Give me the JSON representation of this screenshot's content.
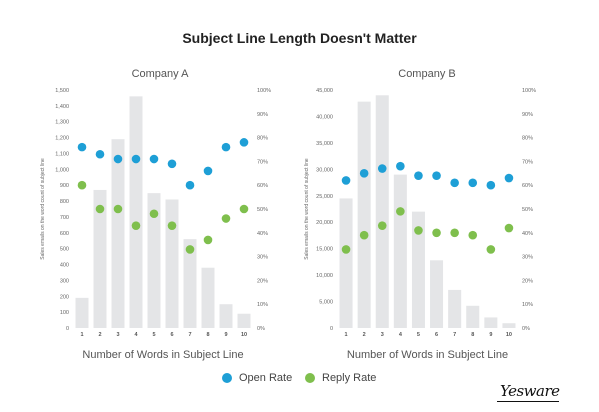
{
  "title": "Subject Line Length Doesn't Matter",
  "legend": {
    "open_label": "Open Rate",
    "reply_label": "Reply Rate",
    "open_color": "#1e9fd6",
    "reply_color": "#7fbf4d"
  },
  "logo_text": "Yesware",
  "bar_color": "#e4e5e7",
  "chart_data": [
    {
      "type": "bar",
      "title": "Company A",
      "categories": [
        "1",
        "2",
        "3",
        "4",
        "5",
        "6",
        "7",
        "8",
        "9",
        "10"
      ],
      "xlabel": "Number of Words in Subject Line",
      "ylabel": "Sales emails on the word count of subject line",
      "ylim": [
        0,
        1500
      ],
      "yticks": [
        "0",
        "100",
        "200",
        "300",
        "400",
        "500",
        "600",
        "700",
        "800",
        "900",
        "1,000",
        "1,100",
        "1,200",
        "1,300",
        "1,400",
        "1,500"
      ],
      "y2lim": [
        0,
        100
      ],
      "y2ticks": [
        "0%",
        "10%",
        "20%",
        "30%",
        "40%",
        "50%",
        "60%",
        "70%",
        "80%",
        "90%",
        "100%"
      ],
      "series": [
        {
          "name": "Sales emails on the word count of subject line",
          "kind": "bar",
          "axis": "left",
          "values": [
            190,
            870,
            1190,
            1460,
            850,
            810,
            560,
            380,
            150,
            90
          ]
        },
        {
          "name": "Open Rate",
          "kind": "scatter",
          "axis": "right",
          "values": [
            76,
            73,
            71,
            71,
            71,
            69,
            60,
            66,
            76,
            78
          ]
        },
        {
          "name": "Reply Rate",
          "kind": "scatter",
          "axis": "right",
          "values": [
            60,
            50,
            50,
            43,
            48,
            43,
            33,
            37,
            46,
            50
          ]
        }
      ]
    },
    {
      "type": "bar",
      "title": "Company B",
      "categories": [
        "1",
        "2",
        "3",
        "4",
        "5",
        "6",
        "7",
        "8",
        "9",
        "10"
      ],
      "xlabel": "Number of Words in Subject Line",
      "ylabel": "Sales emails on the word count of subject line",
      "ylim": [
        0,
        45000
      ],
      "yticks": [
        "0",
        "5,000",
        "10,000",
        "15,000",
        "20,000",
        "25,000",
        "30,000",
        "35,000",
        "40,000",
        "45,000"
      ],
      "y2lim": [
        0,
        100
      ],
      "y2ticks": [
        "0%",
        "10%",
        "20%",
        "30%",
        "40%",
        "50%",
        "60%",
        "70%",
        "80%",
        "90%",
        "100%"
      ],
      "series": [
        {
          "name": "Sales emails on the word count of subject line",
          "kind": "bar",
          "axis": "left",
          "values": [
            24500,
            42800,
            44000,
            29000,
            22000,
            12800,
            7200,
            4200,
            2000,
            900
          ]
        },
        {
          "name": "Open Rate",
          "kind": "scatter",
          "axis": "right",
          "values": [
            62,
            65,
            67,
            68,
            64,
            64,
            61,
            61,
            60,
            63
          ]
        },
        {
          "name": "Reply Rate",
          "kind": "scatter",
          "axis": "right",
          "values": [
            33,
            39,
            43,
            49,
            41,
            40,
            40,
            39,
            33,
            42
          ]
        }
      ]
    }
  ]
}
